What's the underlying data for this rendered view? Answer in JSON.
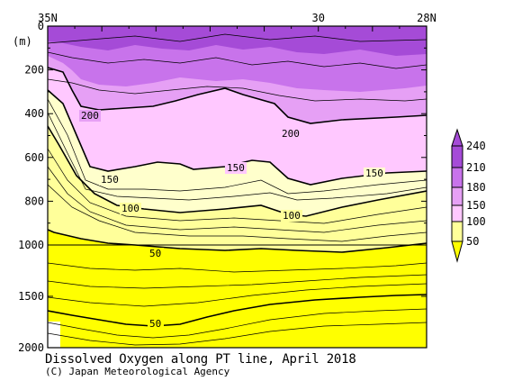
{
  "caption": "Dissolved Oxygen along PT line, April 2018",
  "copyright": "(C) Japan Meteorological Agency",
  "chart_data": {
    "type": "contour",
    "x_ticks": [
      {
        "value": 35,
        "label": "35N"
      },
      {
        "value": 30,
        "label": "30"
      },
      {
        "value": 28,
        "label": "28N"
      }
    ],
    "y_unit": "(m)",
    "y_ticks_upper": [
      0,
      200,
      400,
      600,
      800,
      1000
    ],
    "y_ticks_lower": [
      1500,
      2000
    ],
    "colorbar_ticks": [
      50,
      100,
      150,
      180,
      210,
      240
    ],
    "colors": {
      "low": "#ffff00",
      "mid_low": "#ffff9a",
      "mid": "#ffc8ff",
      "mid_high": "#e6a0f5",
      "high": "#c873eb",
      "max": "#a54bd7"
    },
    "contour_labels": [
      {
        "value": 200,
        "text": "200"
      },
      {
        "value": 200,
        "text": "200"
      },
      {
        "value": 150,
        "text": "150"
      },
      {
        "value": 150,
        "text": "150"
      },
      {
        "value": 150,
        "text": "150"
      },
      {
        "value": 100,
        "text": "100"
      },
      {
        "value": 100,
        "text": "100"
      },
      {
        "value": 50,
        "text": "50"
      },
      {
        "value": 50,
        "text": "50"
      }
    ]
  }
}
